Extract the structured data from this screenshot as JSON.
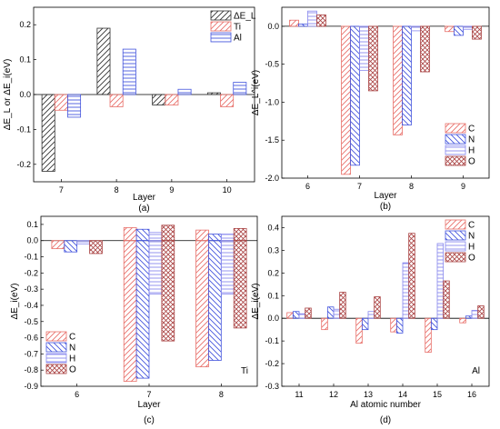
{
  "colors": {
    "C": "#e8706a",
    "N": "#4455dd",
    "H": "#8888ee",
    "O": "#aa4444",
    "Ti": "#e8706a",
    "Al": "#4455dd",
    "EL": "#333333"
  },
  "chart_data": [
    {
      "panel": "a",
      "type": "bar",
      "caption": "(a)",
      "xlabel": "Layer",
      "ylabel": "ΔE_L or ΔE_i(eV)",
      "categories": [
        "7",
        "8",
        "9",
        "10"
      ],
      "ylim": [
        -0.25,
        0.25
      ],
      "yticks": [
        -0.2,
        -0.1,
        0.0,
        0.1,
        0.2
      ],
      "ytick_labels": [
        "-0.2",
        "-0.1",
        "0.0",
        "0.1",
        "0.2"
      ],
      "legend_position": "top-right",
      "series": [
        {
          "name": "ΔE_L",
          "key": "EL",
          "pattern": "back",
          "values": [
            -0.22,
            0.19,
            -0.03,
            0.005
          ]
        },
        {
          "name": "Ti",
          "key": "Ti",
          "pattern": "back",
          "values": [
            -0.045,
            -0.035,
            -0.03,
            -0.035
          ]
        },
        {
          "name": "Al",
          "key": "Al",
          "pattern": "horiz",
          "values": [
            -0.065,
            0.13,
            0.015,
            0.035
          ]
        }
      ]
    },
    {
      "panel": "b",
      "type": "bar",
      "caption": "(b)",
      "xlabel": "Layer",
      "ylabel": "ΔE_L^i(eV)",
      "categories": [
        "6",
        "7",
        "8",
        "9"
      ],
      "ylim": [
        -2.0,
        0.25
      ],
      "yticks": [
        -2.0,
        -1.5,
        -1.0,
        -0.5,
        0.0
      ],
      "ytick_labels": [
        "-2.0",
        "-1.5",
        "-1.0",
        "-0.5",
        "0.0"
      ],
      "legend_position": "bottom-right",
      "series": [
        {
          "name": "C",
          "key": "C",
          "pattern": "back",
          "values": [
            0.08,
            -1.95,
            -1.43,
            -0.07
          ]
        },
        {
          "name": "N",
          "key": "N",
          "pattern": "fwd",
          "values": [
            0.03,
            -1.83,
            -1.3,
            -0.12
          ]
        },
        {
          "name": "H",
          "key": "H",
          "pattern": "horiz",
          "values": [
            0.2,
            -0.58,
            -0.06,
            -0.04
          ]
        },
        {
          "name": "O",
          "key": "O",
          "pattern": "cross",
          "values": [
            0.15,
            -0.85,
            -0.6,
            -0.17
          ]
        }
      ]
    },
    {
      "panel": "c",
      "type": "bar",
      "caption": "(c)",
      "xlabel": "Layer",
      "ylabel": "ΔE_i(eV)",
      "annotation": "Ti",
      "categories": [
        "6",
        "7",
        "8"
      ],
      "ylim": [
        -0.9,
        0.15
      ],
      "yticks": [
        -0.9,
        -0.8,
        -0.7,
        -0.6,
        -0.5,
        -0.4,
        -0.3,
        -0.2,
        -0.1,
        0.0,
        0.1
      ],
      "ytick_labels": [
        "-0.9",
        "-0.8",
        "-0.7",
        "-0.6",
        "-0.5",
        "-0.4",
        "-0.3",
        "-0.2",
        "-0.1",
        "0.0",
        "0.1"
      ],
      "legend_position": "bottom-left",
      "series": [
        {
          "name": "C",
          "key": "C",
          "pattern": "back",
          "values": [
            -0.05,
            -0.87,
            -0.78
          ]
        },
        {
          "name": "N",
          "key": "N",
          "pattern": "fwd",
          "values": [
            -0.07,
            -0.85,
            -0.74
          ]
        },
        {
          "name": "H",
          "key": "H",
          "pattern": "horiz",
          "values": [
            -0.02,
            -0.33,
            -0.33
          ]
        },
        {
          "name": "O",
          "key": "O",
          "pattern": "cross",
          "values": [
            -0.08,
            -0.62,
            -0.54
          ]
        }
      ],
      "positive_overlay": {
        "C": [
          0.0,
          0.08,
          0.065
        ],
        "N": [
          0.0,
          0.07,
          0.04
        ],
        "H": [
          0.0,
          0.05,
          0.04
        ],
        "O": [
          0.0,
          0.095,
          0.075
        ]
      }
    },
    {
      "panel": "d",
      "type": "bar",
      "caption": "(d)",
      "xlabel": "Al atomic number",
      "ylabel": "ΔE_i(eV)",
      "annotation": "Al",
      "categories": [
        "11",
        "12",
        "13",
        "14",
        "15",
        "16"
      ],
      "ylim": [
        -0.3,
        0.45
      ],
      "yticks": [
        -0.3,
        -0.2,
        -0.1,
        0.0,
        0.1,
        0.2,
        0.3,
        0.4
      ],
      "ytick_labels": [
        "-0.3",
        "-0.2",
        "-0.1",
        "0.0",
        "0.1",
        "0.2",
        "0.3",
        "0.4"
      ],
      "legend_position": "top-right",
      "series": [
        {
          "name": "C",
          "key": "C",
          "pattern": "back",
          "values": [
            0.025,
            -0.05,
            -0.11,
            -0.06,
            -0.15,
            -0.02
          ]
        },
        {
          "name": "N",
          "key": "N",
          "pattern": "fwd",
          "values": [
            0.03,
            0.05,
            -0.05,
            -0.065,
            -0.05,
            0.01
          ]
        },
        {
          "name": "H",
          "key": "H",
          "pattern": "horiz",
          "values": [
            0.02,
            0.04,
            0.03,
            0.245,
            0.33,
            0.035
          ]
        },
        {
          "name": "O",
          "key": "O",
          "pattern": "cross",
          "values": [
            0.045,
            0.115,
            0.095,
            0.375,
            0.165,
            0.055
          ]
        }
      ]
    }
  ]
}
